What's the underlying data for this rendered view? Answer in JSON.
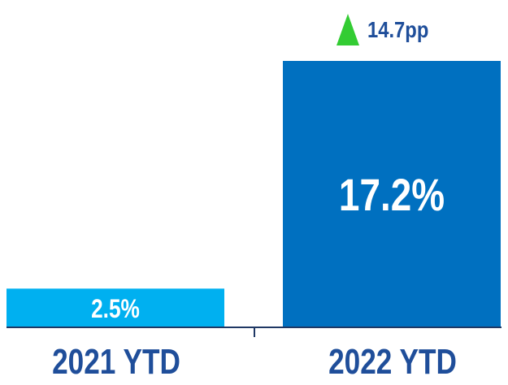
{
  "chart_data": {
    "type": "bar",
    "categories": [
      "2021 YTD",
      "2022 YTD"
    ],
    "values": [
      2.5,
      17.2
    ],
    "data_labels": [
      "2.5%",
      "17.2%"
    ],
    "unit": "%",
    "bar_colors": [
      "#00B0F0",
      "#0070C0"
    ],
    "label_color": "#1F4E9A",
    "delta": {
      "label": "14.7pp",
      "value": 14.7,
      "direction": "up",
      "color": "#33CC33"
    },
    "ylim": [
      0,
      17.2
    ],
    "grid": false,
    "legend": "none"
  }
}
